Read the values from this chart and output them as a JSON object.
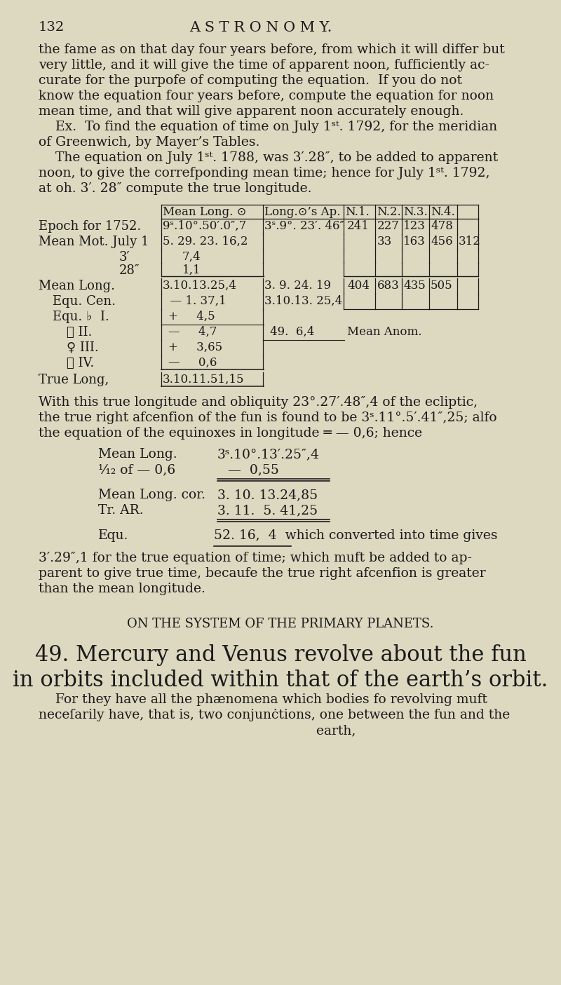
{
  "bg_color": "#ddd8c0",
  "page_number": "132",
  "header_title": "A S T R O N O M Y.",
  "body_text": [
    "the fame as on that day four years before, from which it will differ but",
    "very little, and it will give the time of apparent noon, fufficiently ac-",
    "curate for the purpofe of computing the equation.  If you do not",
    "know the equation four years before, compute the equation for noon",
    "mean time, and that will give apparent noon accurately enough.",
    "    Ex.  To find the equation of time on July 1ˢᵗ. 1792, for the meridian",
    "of Greenwich, by Mayer’s Tables.",
    "    The equation on July 1ˢᵗ. 1788, was 3′.28″, to be added to apparent",
    "noon, to give the correfponding mean time; hence for July 1ˢᵗ. 1792,",
    "at oh. 3′. 28″ compute the true longitude."
  ],
  "after_table_text": [
    "With this true longitude and obliquity 23°.27′.48″,4 of the ecliptic,",
    "the true right afcenfion of the fun is found to be 3ˢ.11°.5′.41″,25; alfo",
    "the equation of the equinoxes in longitude ═ — 0,6; hence"
  ],
  "final_text": [
    "3′.29″,1 for the true equation of time; which muft be added to ap-",
    "parent to give true time, becaufe the true right afcenfion is greater",
    "than the mean longitude."
  ],
  "section_header": "ON THE SYSTEM OF THE PRIMARY PLANETS.",
  "section_paragraph_title": "49. Mercury and Venus revolve about the fun",
  "section_paragraph_title2": "in orbits included within that of the earth’s orbit.",
  "section_body": [
    "    For they have all the phænomena which bodies fo revolving muft",
    "neceſarily have, that is, two conjunċtions, one between the fun and the",
    "                                                                  earth,"
  ],
  "text_color": "#1a1a1a",
  "font_family": "serif"
}
